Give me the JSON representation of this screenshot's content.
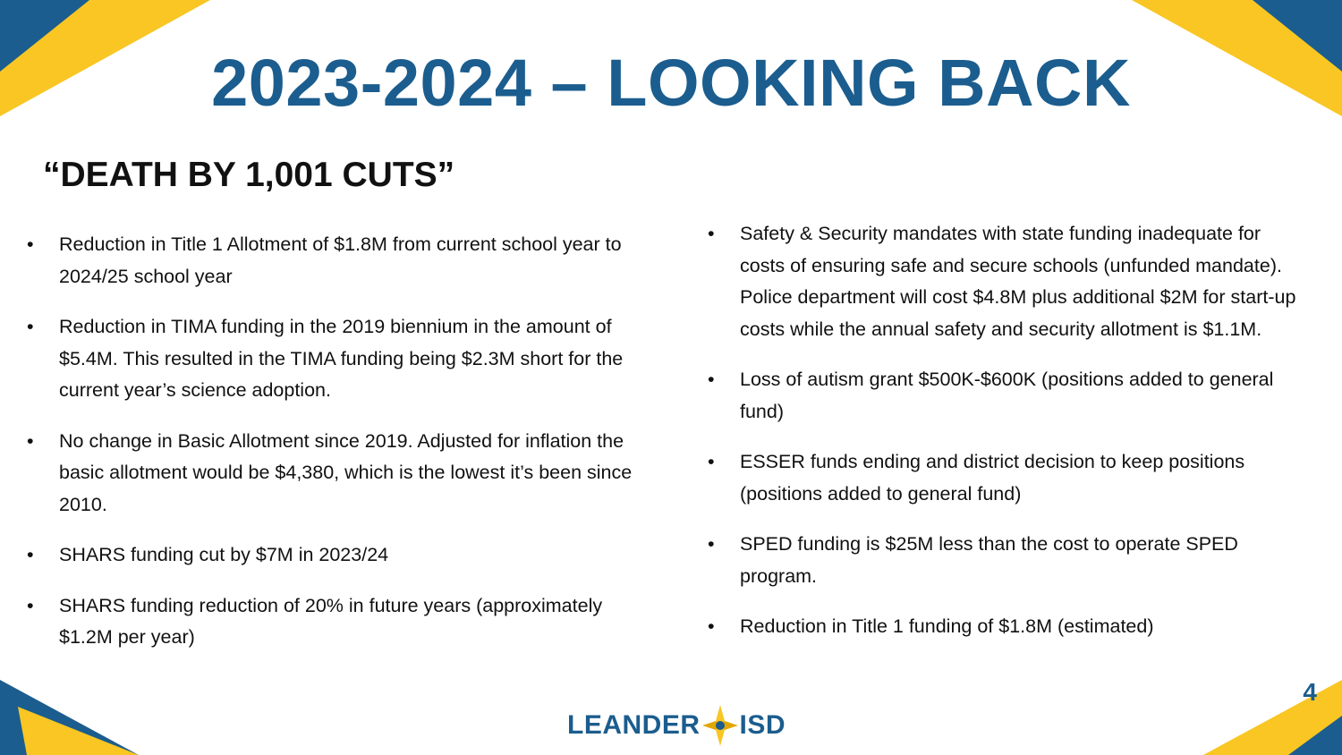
{
  "title": "2023-2024 – LOOKING BACK",
  "subtitle": "“DEATH BY 1,001 CUTS”",
  "left_bullets": [
    "Reduction in Title 1 Allotment of $1.8M from current school year to 2024/25 school year",
    "Reduction in TIMA funding in the 2019 biennium in the amount of $5.4M. This resulted in the TIMA funding being $2.3M short for the current year’s science adoption.",
    "No change in Basic Allotment since 2019. Adjusted for inflation the basic allotment would be $4,380, which is the lowest it’s been since 2010.",
    "SHARS funding cut by $7M in 2023/24",
    "SHARS funding reduction of 20% in future years (approximately $1.2M per year)"
  ],
  "right_bullets": [
    "Safety & Security mandates with state funding inadequate for costs of ensuring safe and secure schools (unfunded mandate). Police department will cost $4.8M plus additional $2M for start-up costs while the annual safety and security allotment is $1.1M.",
    "Loss of autism grant $500K-$600K (positions added to general fund)",
    "ESSER funds ending and district decision to keep positions (positions added to general fund)",
    "SPED funding is $25M less than the cost to operate SPED program.",
    "Reduction in Title 1 funding of $1.8M (estimated)"
  ],
  "page_number": "4",
  "logo": {
    "left": "LEANDER",
    "right": "ISD"
  }
}
